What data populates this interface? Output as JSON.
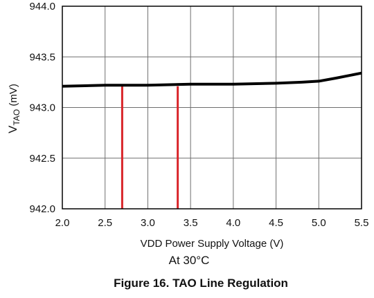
{
  "chart_data": {
    "type": "line",
    "xlabel": "VDD Power Supply Voltage (V)",
    "ylabel": {
      "main": "V",
      "sub": "TAO",
      "unit": " (mV)"
    },
    "xlim": [
      2.0,
      5.5
    ],
    "ylim": [
      942.0,
      944.0
    ],
    "x_ticks": [
      2.0,
      2.5,
      3.0,
      3.5,
      4.0,
      4.5,
      5.0,
      5.5
    ],
    "x_tick_labels": [
      "2.0",
      "2.5",
      "3.0",
      "3.5",
      "4.0",
      "4.5",
      "5.0",
      "5.5"
    ],
    "y_ticks": [
      942.0,
      942.5,
      943.0,
      943.5,
      944.0
    ],
    "y_tick_labels": [
      "942.0",
      "942.5",
      "943.0",
      "943.5",
      "944.0"
    ],
    "grid": true,
    "series": [
      {
        "x": [
          2.0,
          2.5,
          3.0,
          3.5,
          4.0,
          4.5,
          4.8,
          5.0,
          5.2,
          5.5
        ],
        "y": [
          943.21,
          943.22,
          943.22,
          943.23,
          943.23,
          943.24,
          943.25,
          943.26,
          943.29,
          943.34
        ],
        "color": "#000000"
      }
    ],
    "reference_lines": [
      {
        "x": 2.7,
        "color": "#d9252a"
      },
      {
        "x": 3.35,
        "color": "#d9252a"
      }
    ],
    "annotation": "At 30°C",
    "caption": "Figure 16. TAO Line Regulation"
  }
}
